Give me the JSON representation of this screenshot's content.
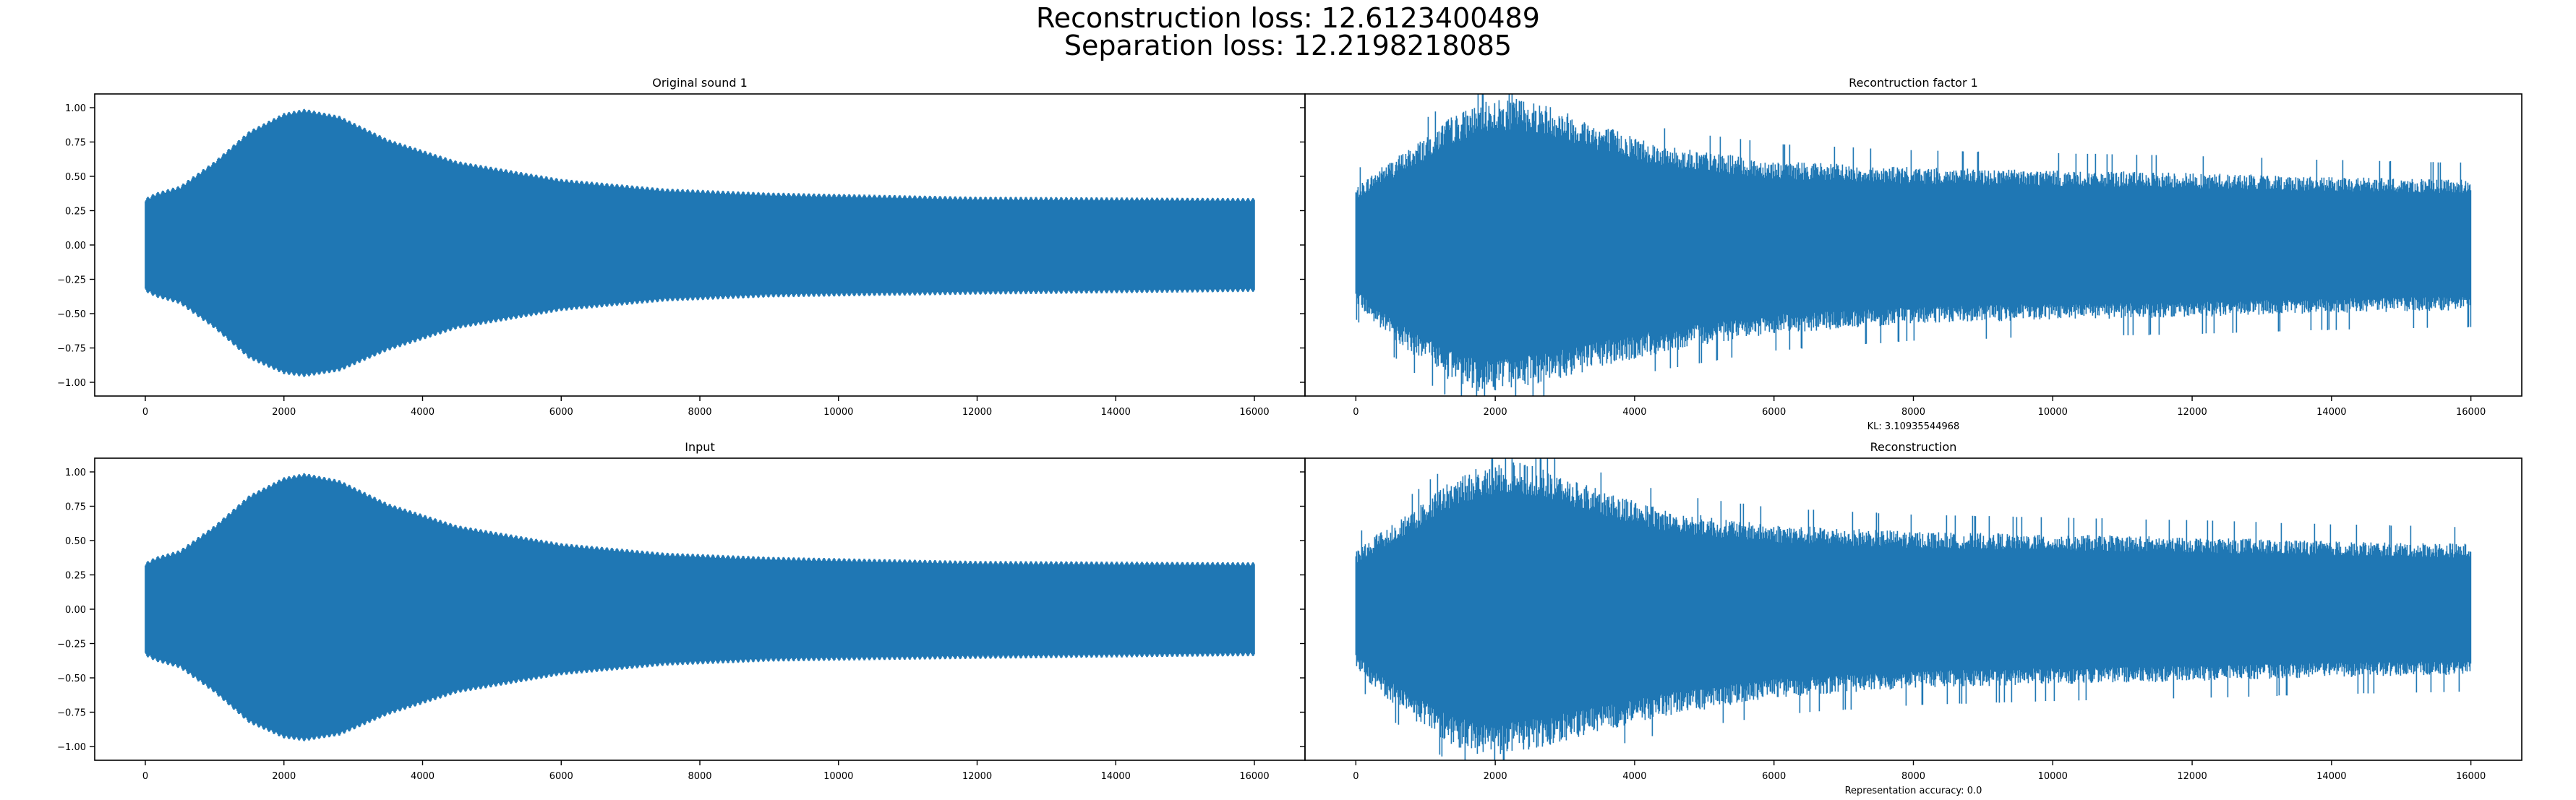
{
  "figure": {
    "suptitle_line1": "Reconstruction loss: 12.6123400489",
    "suptitle_line2": "Separation loss: 12.2198218085",
    "waveform_color": "#1f77b4"
  },
  "chart_data": [
    {
      "type": "line",
      "title": "Original sound 1",
      "xlabel": "",
      "ylabel": "",
      "xlim": [
        -730,
        16730
      ],
      "ylim": [
        -1.1,
        1.1
      ],
      "x_ticks": [
        0,
        2000,
        4000,
        6000,
        8000,
        10000,
        12000,
        14000,
        16000
      ],
      "y_ticks": [
        1.0,
        0.75,
        0.5,
        0.25,
        0.0,
        -0.25,
        -0.5,
        -0.75,
        -1.0
      ],
      "y_tick_labels": [
        "1.00",
        "0.75",
        "0.50",
        "0.25",
        "0.00",
        "−0.25",
        "−0.50",
        "−0.75",
        "−1.00"
      ],
      "show_y_tick_labels": true,
      "grid": false,
      "waveform": "symmetric oscillation filling an amplitude envelope",
      "envelope": {
        "x": [
          0,
          150,
          500,
          1000,
          1500,
          2000,
          2300,
          2800,
          3500,
          4500,
          6000,
          7500,
          9000,
          12000,
          16000
        ],
        "upper": [
          0.33,
          0.37,
          0.42,
          0.6,
          0.82,
          0.95,
          0.98,
          0.93,
          0.76,
          0.6,
          0.47,
          0.4,
          0.37,
          0.34,
          0.33
        ],
        "lower": [
          -0.33,
          -0.37,
          -0.42,
          -0.6,
          -0.82,
          -0.93,
          -0.95,
          -0.91,
          -0.76,
          -0.6,
          -0.47,
          -0.4,
          -0.37,
          -0.35,
          -0.33
        ]
      },
      "footer_text": ""
    },
    {
      "type": "line",
      "title": "Recontruction factor 1",
      "xlabel": "",
      "ylabel": "",
      "xlim": [
        -730,
        16730
      ],
      "ylim": [
        -1.1,
        1.1
      ],
      "x_ticks": [
        0,
        2000,
        4000,
        6000,
        8000,
        10000,
        12000,
        14000,
        16000
      ],
      "y_ticks": [
        1.0,
        0.75,
        0.5,
        0.25,
        0.0,
        -0.25,
        -0.5,
        -0.75,
        -1.0
      ],
      "y_tick_labels": [
        "1.00",
        "0.75",
        "0.50",
        "0.25",
        "0.00",
        "−0.25",
        "−0.50",
        "−0.75",
        "−1.00"
      ],
      "show_y_tick_labels": false,
      "grid": false,
      "waveform": "noisy oscillation filling an amplitude envelope",
      "envelope": {
        "x": [
          0,
          300,
          800,
          1300,
          1800,
          2300,
          2800,
          3500,
          4500,
          6000,
          8000,
          10000,
          12000,
          14000,
          16000
        ],
        "upper": [
          0.42,
          0.55,
          0.72,
          0.92,
          1.05,
          1.08,
          1.02,
          0.88,
          0.72,
          0.62,
          0.57,
          0.55,
          0.53,
          0.5,
          0.48
        ],
        "lower": [
          -0.42,
          -0.6,
          -0.8,
          -0.98,
          -1.08,
          -1.05,
          -1.0,
          -0.9,
          -0.78,
          -0.65,
          -0.58,
          -0.55,
          -0.53,
          -0.5,
          -0.48
        ]
      },
      "footer_text": "KL: 3.10935544968"
    },
    {
      "type": "line",
      "title": "Input",
      "xlabel": "",
      "ylabel": "",
      "xlim": [
        -730,
        16730
      ],
      "ylim": [
        -1.1,
        1.1
      ],
      "x_ticks": [
        0,
        2000,
        4000,
        6000,
        8000,
        10000,
        12000,
        14000,
        16000
      ],
      "y_ticks": [
        1.0,
        0.75,
        0.5,
        0.25,
        0.0,
        -0.25,
        -0.5,
        -0.75,
        -1.0
      ],
      "y_tick_labels": [
        "1.00",
        "0.75",
        "0.50",
        "0.25",
        "0.00",
        "−0.25",
        "−0.50",
        "−0.75",
        "−1.00"
      ],
      "show_y_tick_labels": true,
      "grid": false,
      "waveform": "symmetric oscillation filling an amplitude envelope",
      "envelope": {
        "x": [
          0,
          150,
          500,
          1000,
          1500,
          2000,
          2300,
          2800,
          3500,
          4500,
          6000,
          7500,
          9000,
          12000,
          16000
        ],
        "upper": [
          0.33,
          0.37,
          0.42,
          0.6,
          0.82,
          0.95,
          0.98,
          0.93,
          0.76,
          0.6,
          0.47,
          0.4,
          0.37,
          0.34,
          0.33
        ],
        "lower": [
          -0.33,
          -0.37,
          -0.42,
          -0.6,
          -0.82,
          -0.93,
          -0.95,
          -0.91,
          -0.76,
          -0.6,
          -0.47,
          -0.4,
          -0.37,
          -0.35,
          -0.33
        ]
      },
      "footer_text": ""
    },
    {
      "type": "line",
      "title": "Reconstruction",
      "xlabel": "",
      "ylabel": "",
      "xlim": [
        -730,
        16730
      ],
      "ylim": [
        -1.1,
        1.1
      ],
      "x_ticks": [
        0,
        2000,
        4000,
        6000,
        8000,
        10000,
        12000,
        14000,
        16000
      ],
      "y_ticks": [
        1.0,
        0.75,
        0.5,
        0.25,
        0.0,
        -0.25,
        -0.5,
        -0.75,
        -1.0
      ],
      "y_tick_labels": [
        "1.00",
        "0.75",
        "0.50",
        "0.25",
        "0.00",
        "−0.25",
        "−0.50",
        "−0.75",
        "−1.00"
      ],
      "show_y_tick_labels": false,
      "grid": false,
      "waveform": "noisy oscillation filling an amplitude envelope",
      "envelope": {
        "x": [
          0,
          300,
          800,
          1300,
          1800,
          2300,
          2800,
          3500,
          4500,
          6000,
          8000,
          10000,
          12000,
          14000,
          16000
        ],
        "upper": [
          0.42,
          0.55,
          0.72,
          0.92,
          1.05,
          1.08,
          1.02,
          0.88,
          0.72,
          0.62,
          0.57,
          0.55,
          0.53,
          0.5,
          0.48
        ],
        "lower": [
          -0.42,
          -0.6,
          -0.8,
          -0.98,
          -1.08,
          -1.05,
          -1.0,
          -0.9,
          -0.78,
          -0.65,
          -0.58,
          -0.55,
          -0.53,
          -0.5,
          -0.48
        ]
      },
      "footer_text": "Representation accuracy: 0.0"
    }
  ]
}
